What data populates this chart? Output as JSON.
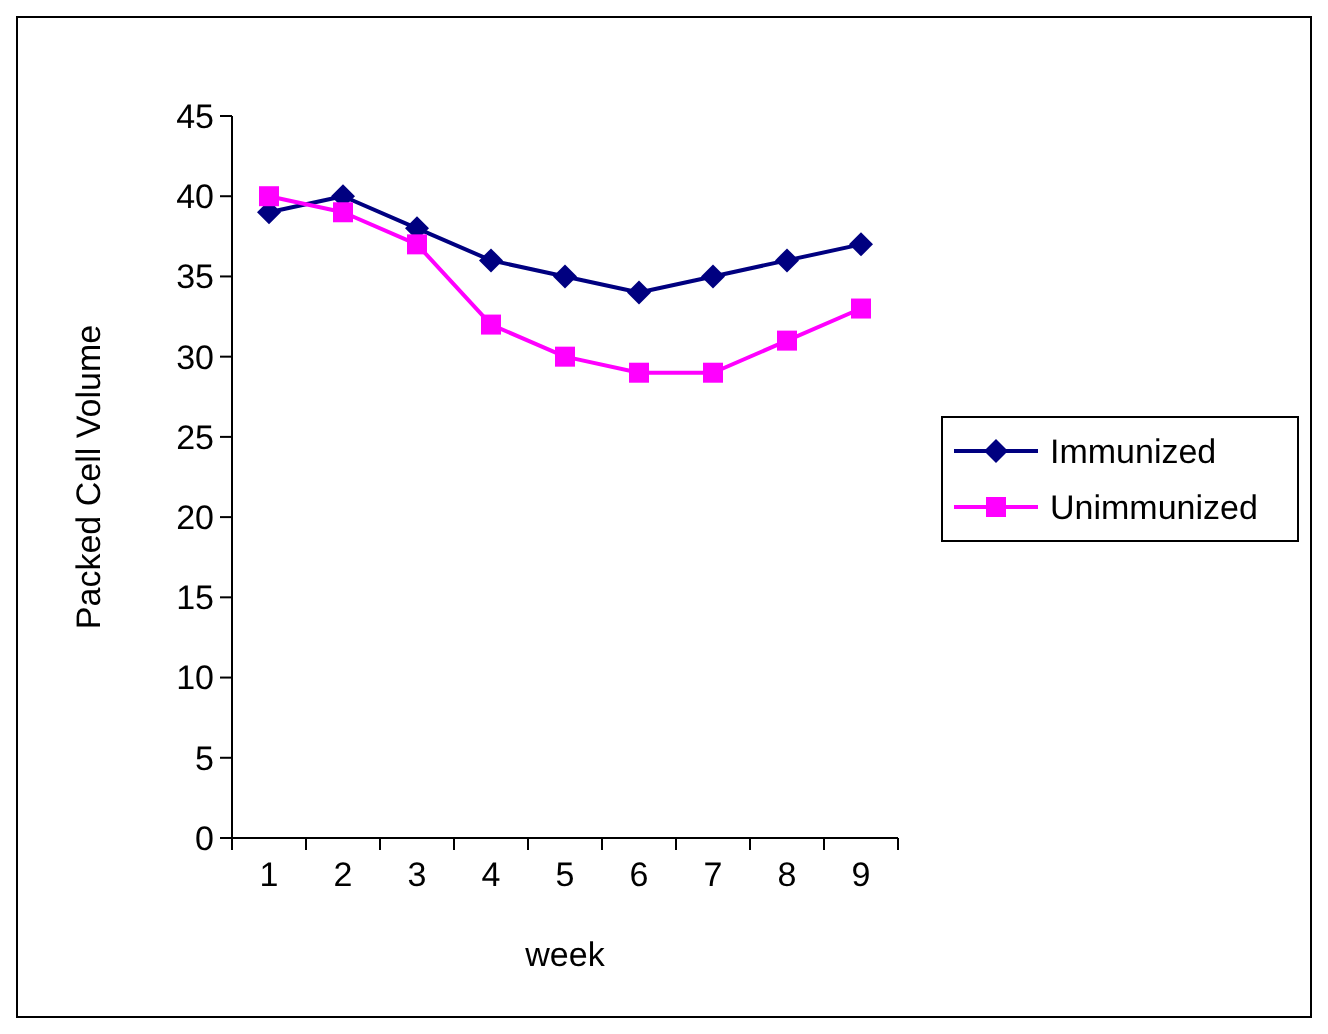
{
  "chart_data": {
    "type": "line",
    "xlabel": "week",
    "ylabel": "Packed Cell Volume",
    "categories": [
      "1",
      "2",
      "3",
      "4",
      "5",
      "6",
      "7",
      "8",
      "9"
    ],
    "ylim": [
      0,
      45
    ],
    "yticks": [
      0,
      5,
      10,
      15,
      20,
      25,
      30,
      35,
      40,
      45
    ],
    "legend": "right",
    "grid": false,
    "series": [
      {
        "name": "Immunized",
        "color": "#000080",
        "marker": "diamond",
        "values": [
          39,
          40,
          38,
          36,
          35,
          34,
          35,
          36,
          37
        ]
      },
      {
        "name": "Unimmunized",
        "color": "#ff00ff",
        "marker": "square",
        "values": [
          40,
          39,
          37,
          32,
          30,
          29,
          29,
          31,
          33
        ]
      }
    ]
  }
}
